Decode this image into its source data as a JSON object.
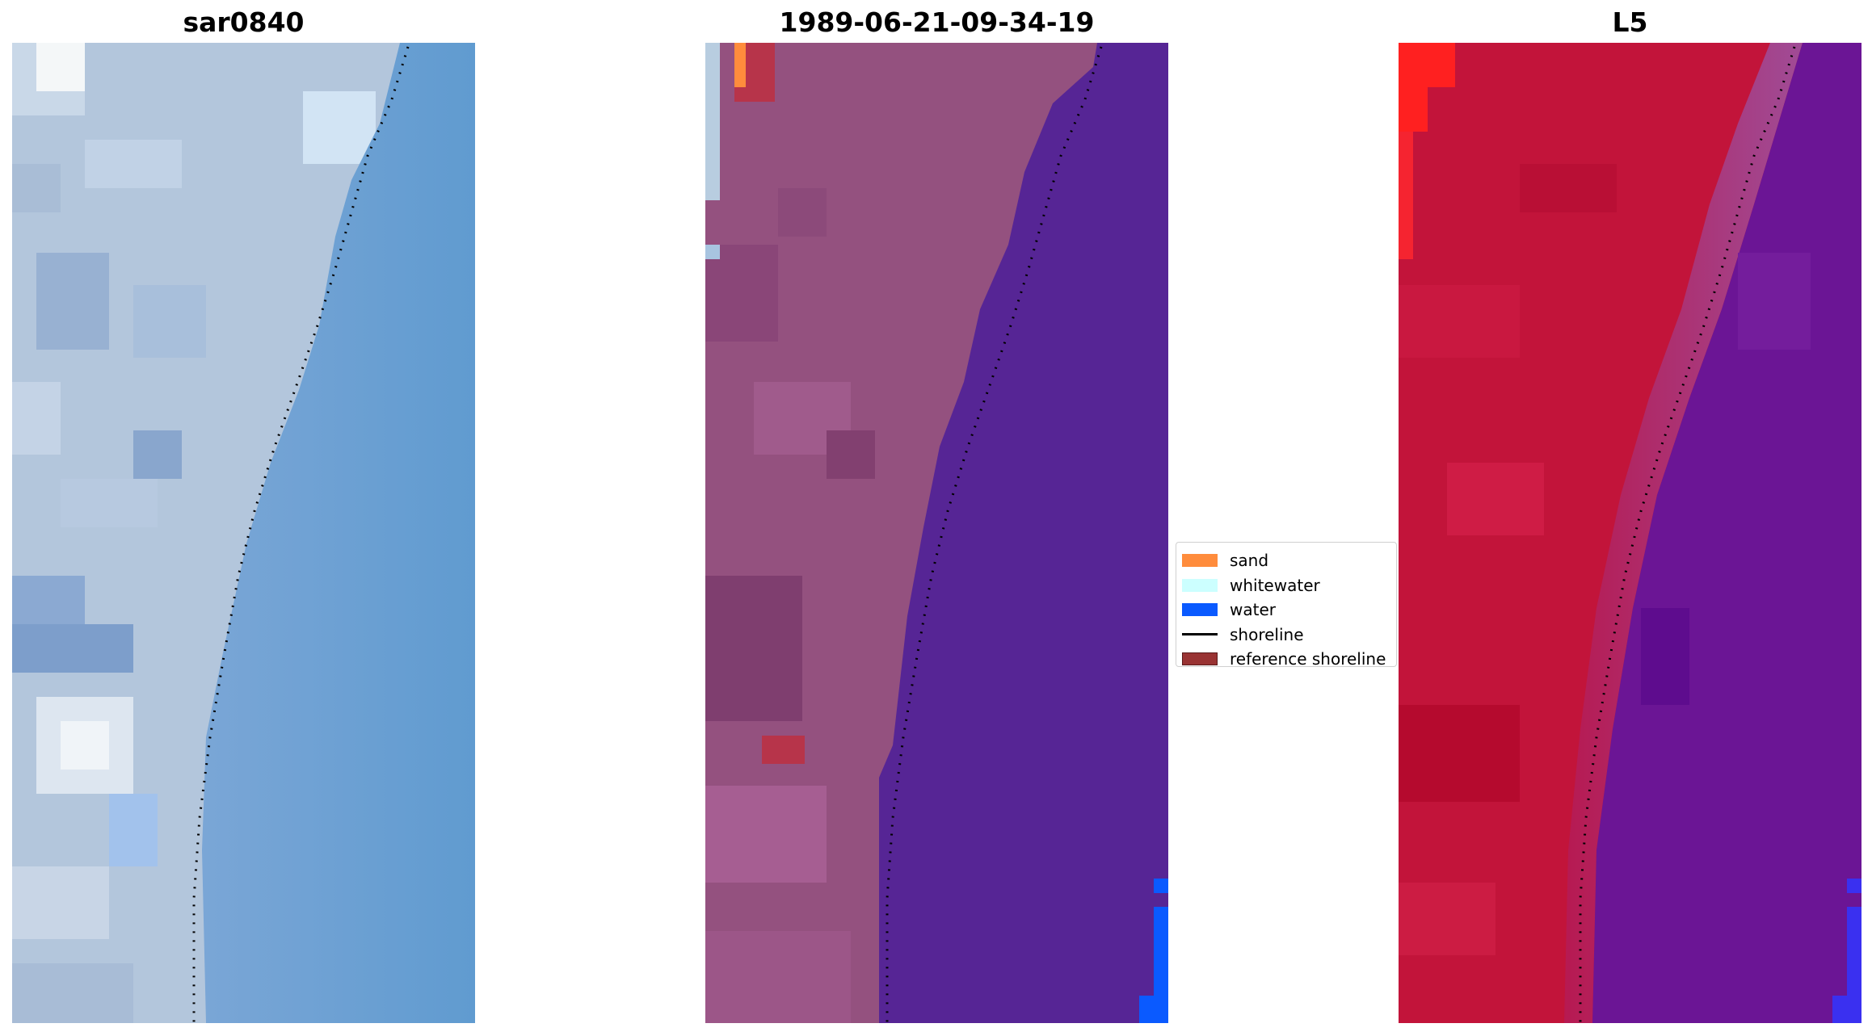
{
  "panels": [
    {
      "title": "sar0840"
    },
    {
      "title": "1989-06-21-09-34-19"
    },
    {
      "title": "L5"
    }
  ],
  "legend": {
    "items": [
      {
        "label": "sand",
        "color": "#ff8c3c",
        "kind": "patch"
      },
      {
        "label": "whitewater",
        "color": "#ccffff",
        "kind": "patch"
      },
      {
        "label": "water",
        "color": "#0a5aff",
        "kind": "patch"
      },
      {
        "label": "shoreline",
        "color": "#000000",
        "kind": "line"
      },
      {
        "label": "reference shoreline",
        "color": "#993333",
        "kind": "patch"
      }
    ]
  },
  "colors": {
    "rgb_land": "#b8cce0",
    "rgb_water": "#679bd0",
    "classified_land": "#94517f",
    "classified_water": "#562595",
    "ndwi_land": "#c2143a",
    "ndwi_water": "#6b1595"
  }
}
